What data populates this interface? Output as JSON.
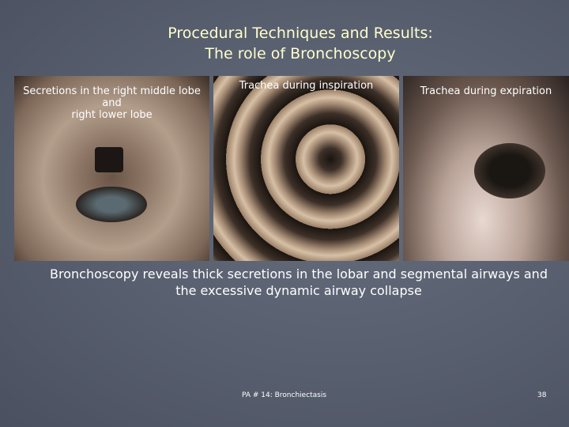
{
  "slide": {
    "title": [
      "Procedural Techniques and Results:",
      "The role of Bronchoscopy"
    ],
    "images": [
      {
        "caption": [
          "Secretions in the right middle lobe",
          "and",
          "right lower lobe"
        ]
      },
      {
        "caption": [
          "Trachea during inspiration"
        ]
      },
      {
        "caption": [
          "Trachea during expiration"
        ]
      }
    ],
    "body": [
      "Bronchoscopy reveals thick secretions in the lobar and segmental airways and",
      "the excessive dynamic airway collapse"
    ],
    "footer": "PA # 14: Bronchiectasis",
    "page_number": "38"
  }
}
